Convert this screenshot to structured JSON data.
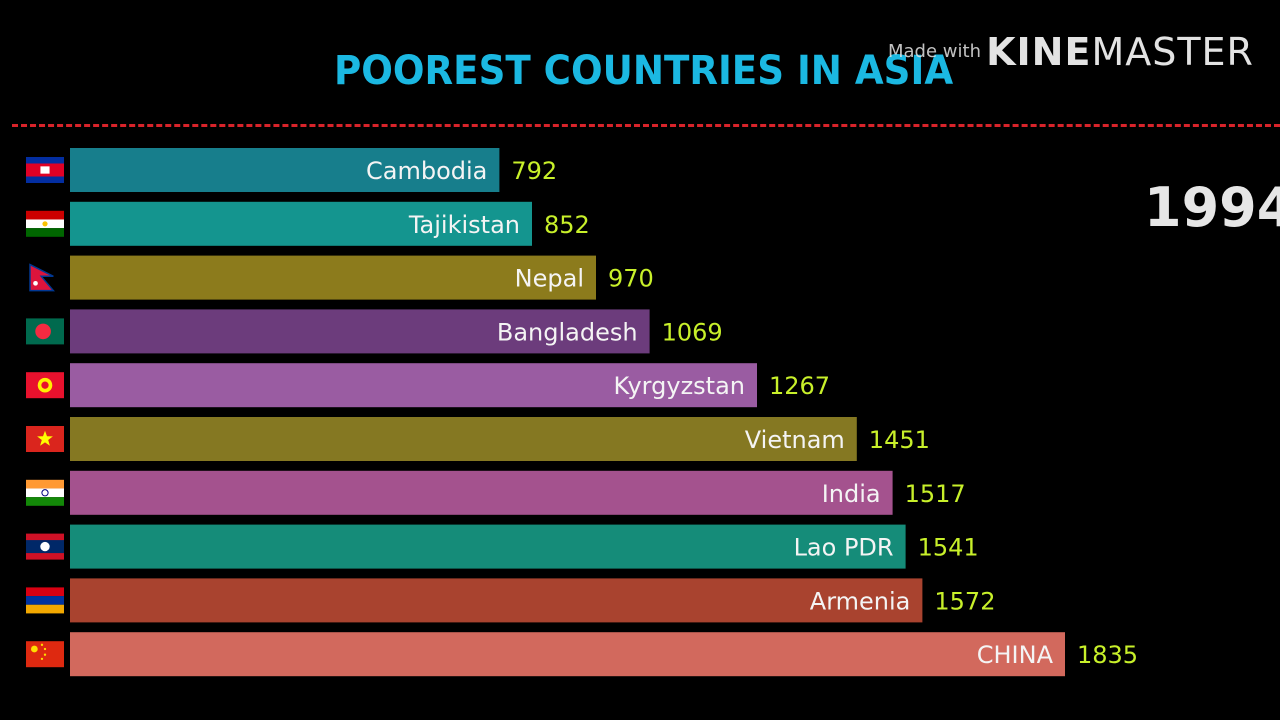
{
  "header": {
    "title": "POOREST COUNTRIES IN ASIA",
    "watermark_prefix": "Made with",
    "watermark_kine": "KINE",
    "watermark_master": "MASTER",
    "year": "1994"
  },
  "chart_data": {
    "type": "bar",
    "orientation": "horizontal",
    "title": "POOREST COUNTRIES IN ASIA",
    "categories": [
      "Cambodia",
      "Tajikistan",
      "Nepal",
      "Bangladesh",
      "Kyrgyzstan",
      "Vietnam",
      "India",
      "Lao PDR",
      "Armenia",
      "CHINA"
    ],
    "values": [
      792,
      852,
      970,
      1069,
      1267,
      1451,
      1517,
      1541,
      1572,
      1835
    ],
    "colors": [
      "#177e8c",
      "#14958f",
      "#8c7b1c",
      "#6c3c7c",
      "#9a5ca2",
      "#857822",
      "#a4528e",
      "#158c79",
      "#a9432f",
      "#d2695d"
    ],
    "flags": [
      "cambodia-flag-icon",
      "tajikistan-flag-icon",
      "nepal-flag-icon",
      "bangladesh-flag-icon",
      "kyrgyzstan-flag-icon",
      "vietnam-flag-icon",
      "india-flag-icon",
      "laos-flag-icon",
      "armenia-flag-icon",
      "china-flag-icon"
    ],
    "value_label_color": "#c8f02a",
    "grid": false,
    "legend": "none"
  }
}
